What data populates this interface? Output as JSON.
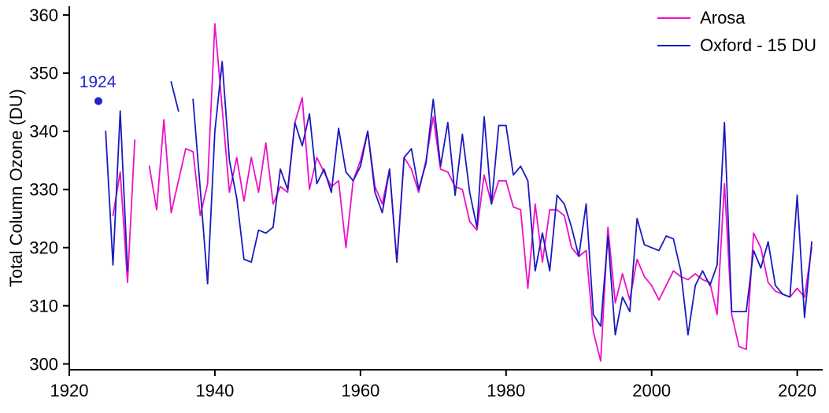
{
  "chart_data": {
    "type": "line",
    "ylabel": "Total Column Ozone (DU)",
    "xlim": [
      1920,
      2023.5
    ],
    "ylim": [
      299,
      361.5
    ],
    "xticks": [
      1920,
      1940,
      1960,
      1980,
      2000,
      2020
    ],
    "yticks": [
      300,
      310,
      320,
      330,
      340,
      350,
      360
    ],
    "grid": false,
    "legend_position": "top-right",
    "series": [
      {
        "name": "Arosa",
        "color": "#ee0fc8",
        "points": [
          [
            1926,
            325.5
          ],
          [
            1927,
            333
          ],
          [
            1928,
            314
          ],
          [
            1929,
            338.5
          ],
          [
            1931,
            334
          ],
          [
            1932,
            326.5
          ],
          [
            1933,
            342
          ],
          [
            1934,
            326
          ],
          [
            1935,
            331.5
          ],
          [
            1936,
            337
          ],
          [
            1937,
            336.5
          ],
          [
            1938,
            325.5
          ],
          [
            1939,
            331
          ],
          [
            1940,
            358.5
          ],
          [
            1941,
            344
          ],
          [
            1942,
            329.5
          ],
          [
            1943,
            335.5
          ],
          [
            1944,
            328
          ],
          [
            1945,
            335.5
          ],
          [
            1946,
            329.5
          ],
          [
            1947,
            338
          ],
          [
            1948,
            327.5
          ],
          [
            1949,
            330.5
          ],
          [
            1950,
            329.5
          ],
          [
            1951,
            341.5
          ],
          [
            1952,
            345.8
          ],
          [
            1953,
            330
          ],
          [
            1954,
            335.5
          ],
          [
            1955,
            333
          ],
          [
            1956,
            330.5
          ],
          [
            1957,
            331.5
          ],
          [
            1958,
            320
          ],
          [
            1959,
            331.5
          ],
          [
            1960,
            335
          ],
          [
            1961,
            340
          ],
          [
            1962,
            330.5
          ],
          [
            1963,
            327.5
          ],
          [
            1964,
            333.5
          ],
          [
            1965,
            317.5
          ],
          [
            1966,
            335.5
          ],
          [
            1967,
            333.5
          ],
          [
            1968,
            329.5
          ],
          [
            1969,
            335
          ],
          [
            1970,
            342.5
          ],
          [
            1971,
            333.5
          ],
          [
            1972,
            333
          ],
          [
            1973,
            330.5
          ],
          [
            1974,
            330
          ],
          [
            1975,
            324.5
          ],
          [
            1976,
            323
          ],
          [
            1977,
            332.5
          ],
          [
            1978,
            327.5
          ],
          [
            1979,
            331.5
          ],
          [
            1980,
            331.5
          ],
          [
            1981,
            327
          ],
          [
            1982,
            326.5
          ],
          [
            1983,
            313
          ],
          [
            1984,
            327.5
          ],
          [
            1985,
            317.5
          ],
          [
            1986,
            326.5
          ],
          [
            1987,
            326.5
          ],
          [
            1988,
            325.5
          ],
          [
            1989,
            320
          ],
          [
            1990,
            318.5
          ],
          [
            1991,
            319.5
          ],
          [
            1992,
            305.5
          ],
          [
            1993,
            300.5
          ],
          [
            1994,
            323.5
          ],
          [
            1995,
            310.5
          ],
          [
            1996,
            315.5
          ],
          [
            1997,
            311
          ],
          [
            1998,
            318
          ],
          [
            1999,
            315
          ],
          [
            2000,
            313.5
          ],
          [
            2001,
            311
          ],
          [
            2002,
            313.5
          ],
          [
            2003,
            316
          ],
          [
            2004,
            315
          ],
          [
            2005,
            314.5
          ],
          [
            2006,
            315.5
          ],
          [
            2007,
            314.5
          ],
          [
            2008,
            314
          ],
          [
            2009,
            308.5
          ],
          [
            2010,
            331
          ],
          [
            2011,
            308.5
          ],
          [
            2012,
            303
          ],
          [
            2013,
            302.5
          ],
          [
            2014,
            322.5
          ],
          [
            2015,
            320
          ],
          [
            2016,
            314
          ],
          [
            2017,
            312.5
          ],
          [
            2018,
            312
          ],
          [
            2019,
            311.5
          ],
          [
            2020,
            313
          ],
          [
            2021,
            311.5
          ],
          [
            2022,
            320
          ]
        ]
      },
      {
        "name": "Oxford - 15 DU",
        "color": "#1a1ac0",
        "points": [
          [
            1925,
            340
          ],
          [
            1926,
            317
          ],
          [
            1927,
            343.5
          ],
          [
            1928,
            316
          ],
          [
            1934,
            348.5
          ],
          [
            1935,
            343.5
          ],
          [
            1937,
            345.5
          ],
          [
            1938,
            330
          ],
          [
            1939,
            313.8
          ],
          [
            1940,
            340
          ],
          [
            1941,
            352
          ],
          [
            1942,
            335
          ],
          [
            1943,
            328.5
          ],
          [
            1944,
            318
          ],
          [
            1945,
            317.5
          ],
          [
            1946,
            323
          ],
          [
            1947,
            322.5
          ],
          [
            1948,
            323.5
          ],
          [
            1949,
            333.5
          ],
          [
            1950,
            330
          ],
          [
            1951,
            341.5
          ],
          [
            1952,
            337.5
          ],
          [
            1953,
            343
          ],
          [
            1954,
            331
          ],
          [
            1955,
            333.5
          ],
          [
            1956,
            329.5
          ],
          [
            1957,
            340.5
          ],
          [
            1958,
            333
          ],
          [
            1959,
            331.5
          ],
          [
            1960,
            334
          ],
          [
            1961,
            340
          ],
          [
            1962,
            329.5
          ],
          [
            1963,
            326
          ],
          [
            1964,
            333.5
          ],
          [
            1965,
            317.5
          ],
          [
            1966,
            335.5
          ],
          [
            1967,
            337
          ],
          [
            1968,
            330
          ],
          [
            1969,
            334.5
          ],
          [
            1970,
            345.5
          ],
          [
            1971,
            334
          ],
          [
            1972,
            341.5
          ],
          [
            1973,
            329
          ],
          [
            1974,
            339.5
          ],
          [
            1975,
            329.5
          ],
          [
            1976,
            323.5
          ],
          [
            1977,
            342.5
          ],
          [
            1978,
            327.5
          ],
          [
            1979,
            341
          ],
          [
            1980,
            341
          ],
          [
            1981,
            332.5
          ],
          [
            1982,
            334
          ],
          [
            1983,
            331.5
          ],
          [
            1984,
            316
          ],
          [
            1985,
            322.5
          ],
          [
            1986,
            316
          ],
          [
            1987,
            329
          ],
          [
            1988,
            327.5
          ],
          [
            1989,
            323.5
          ],
          [
            1990,
            318.5
          ],
          [
            1991,
            327.5
          ],
          [
            1992,
            308.5
          ],
          [
            1993,
            306.5
          ],
          [
            1994,
            322
          ],
          [
            1995,
            305
          ],
          [
            1996,
            311.5
          ],
          [
            1997,
            309
          ],
          [
            1998,
            325
          ],
          [
            1999,
            320.5
          ],
          [
            2000,
            320
          ],
          [
            2001,
            319.5
          ],
          [
            2002,
            322
          ],
          [
            2003,
            321.5
          ],
          [
            2004,
            316
          ],
          [
            2005,
            305
          ],
          [
            2006,
            313.5
          ],
          [
            2007,
            316
          ],
          [
            2008,
            313.5
          ],
          [
            2009,
            317
          ],
          [
            2010,
            341.5
          ],
          [
            2011,
            309
          ],
          [
            2012,
            309
          ],
          [
            2013,
            309
          ],
          [
            2014,
            319.5
          ],
          [
            2015,
            316.5
          ],
          [
            2016,
            321
          ],
          [
            2017,
            313.5
          ],
          [
            2018,
            312
          ],
          [
            2019,
            311.5
          ],
          [
            2020,
            329
          ],
          [
            2021,
            308
          ],
          [
            2022,
            321
          ]
        ]
      }
    ],
    "annotations": [
      {
        "text": "1924",
        "x": 1924,
        "y": 345.2,
        "marker": "circle",
        "color": "#2323cf"
      }
    ]
  }
}
